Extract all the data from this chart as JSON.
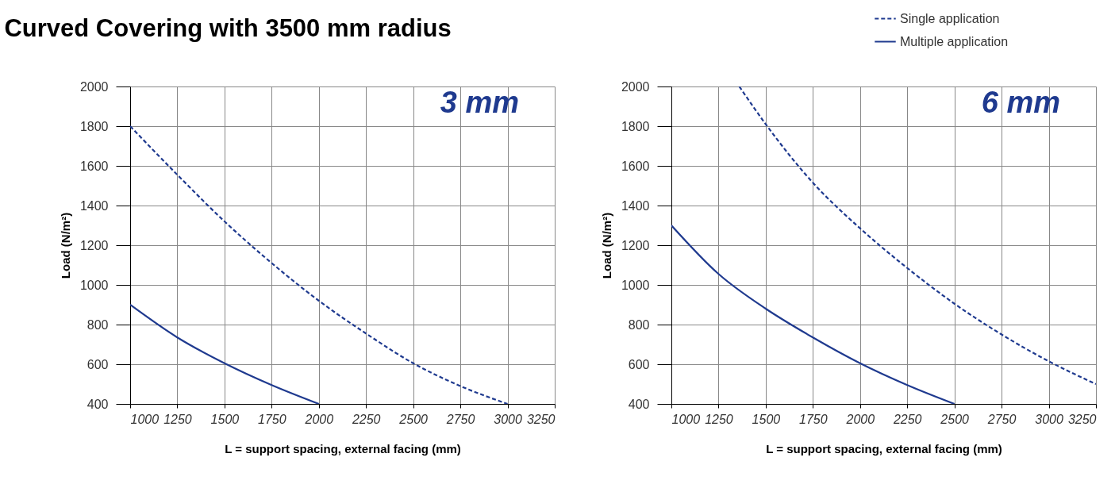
{
  "chart_data": [
    {
      "type": "line",
      "title": "Curved Covering with 3500 mm radius",
      "xlabel": "L = support spacing, external facing (mm)",
      "ylabel": "Load (N/m²)",
      "annotations": [
        "3 mm"
      ],
      "xlim": [
        1000,
        3250
      ],
      "ylim": [
        400,
        2000
      ],
      "xticks": [
        1000,
        1250,
        1500,
        1750,
        2000,
        2250,
        2500,
        2750,
        3000,
        3250
      ],
      "yticks": [
        400,
        600,
        800,
        1000,
        1200,
        1400,
        1600,
        1800,
        2000
      ],
      "grid": true,
      "series": [
        {
          "color": "#1f3a8f",
          "line_style": "dashed",
          "x": [
            1000,
            1250,
            1500,
            1750,
            2000,
            2250,
            2500,
            2750,
            3000
          ],
          "values": [
            1800,
            1555,
            1320,
            1110,
            920,
            755,
            605,
            490,
            400
          ]
        },
        {
          "color": "#1f3a8f",
          "line_style": "solid",
          "x": [
            1000,
            1250,
            1500,
            1750,
            2000
          ],
          "values": [
            900,
            735,
            605,
            495,
            400
          ]
        }
      ]
    },
    {
      "type": "line",
      "xlabel": "L = support spacing, external facing (mm)",
      "ylabel": "Load (N/m²)",
      "annotations": [
        "6 mm"
      ],
      "xlim": [
        1000,
        3250
      ],
      "ylim": [
        400,
        2000
      ],
      "xticks": [
        1000,
        1250,
        1500,
        1750,
        2000,
        2250,
        2500,
        2750,
        3000,
        3250
      ],
      "yticks": [
        400,
        600,
        800,
        1000,
        1200,
        1400,
        1600,
        1800,
        2000
      ],
      "grid": true,
      "legend": "top right",
      "series": [
        {
          "name": "Single application",
          "color": "#1f3a8f",
          "line_style": "dashed",
          "x": [
            1360,
            1500,
            1750,
            2000,
            2250,
            2500,
            2750,
            3000,
            3250
          ],
          "values": [
            2000,
            1810,
            1515,
            1285,
            1085,
            905,
            750,
            615,
            500
          ]
        },
        {
          "name": "Multiple application",
          "color": "#1f3a8f",
          "line_style": "solid",
          "x": [
            1000,
            1250,
            1500,
            1750,
            2000,
            2250,
            2500
          ],
          "values": [
            1300,
            1055,
            880,
            735,
            605,
            495,
            400
          ]
        }
      ]
    }
  ]
}
